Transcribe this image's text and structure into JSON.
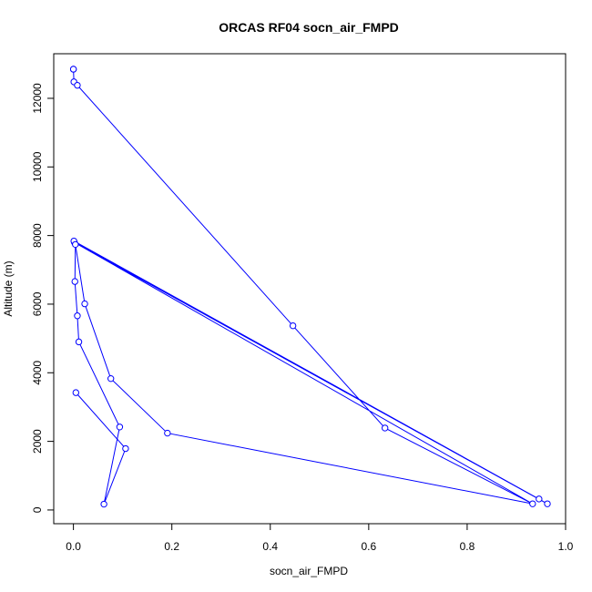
{
  "chart_data": {
    "type": "scatter",
    "title": "ORCAS RF04 socn_air_FMPD",
    "xlabel": "socn_air_FMPD",
    "ylabel": "Altitude (m)",
    "xlim": [
      -0.04,
      1.0
    ],
    "ylim": [
      -400,
      13300
    ],
    "x_ticks": [
      0.0,
      0.2,
      0.4,
      0.6,
      0.8,
      1.0
    ],
    "x_tick_labels": [
      "0.0",
      "0.2",
      "0.4",
      "0.6",
      "0.8",
      "1.0"
    ],
    "y_ticks": [
      0,
      2000,
      4000,
      6000,
      8000,
      10000,
      12000
    ],
    "y_tick_labels": [
      "0",
      "2000",
      "4000",
      "6000",
      "8000",
      "10000",
      "12000"
    ],
    "grid": false,
    "series_color": "#0000ff",
    "points": [
      {
        "x": 0.0,
        "y": 12850
      },
      {
        "x": 0.0,
        "y": 12850
      },
      {
        "x": 0.001,
        "y": 12480
      },
      {
        "x": 0.008,
        "y": 12380
      },
      {
        "x": 0.446,
        "y": 5370
      },
      {
        "x": 0.633,
        "y": 2390
      },
      {
        "x": 0.933,
        "y": 180
      },
      {
        "x": 0.002,
        "y": 7800
      },
      {
        "x": 0.963,
        "y": 180
      },
      {
        "x": 0.946,
        "y": 320
      },
      {
        "x": 0.001,
        "y": 7840
      },
      {
        "x": 0.004,
        "y": 7740
      },
      {
        "x": 0.003,
        "y": 6660
      },
      {
        "x": 0.008,
        "y": 5660
      },
      {
        "x": 0.011,
        "y": 4900
      },
      {
        "x": 0.094,
        "y": 2420
      },
      {
        "x": 0.062,
        "y": 170
      },
      {
        "x": 0.106,
        "y": 1790
      },
      {
        "x": 0.005,
        "y": 3420
      }
    ],
    "extra_points": [
      {
        "x": 0.023,
        "y": 6010
      },
      {
        "x": 0.076,
        "y": 3830
      },
      {
        "x": 0.191,
        "y": 2240
      }
    ],
    "extra_path": [
      {
        "x": 0.003,
        "y": 7830
      },
      {
        "x": 0.023,
        "y": 6010
      },
      {
        "x": 0.076,
        "y": 3830
      },
      {
        "x": 0.191,
        "y": 2240
      },
      {
        "x": 0.933,
        "y": 180
      }
    ]
  }
}
